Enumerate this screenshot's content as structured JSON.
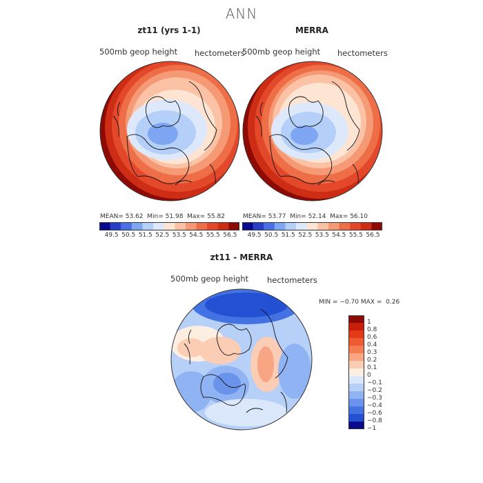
{
  "title": "ANN",
  "levels": [
    49.5,
    50.5,
    51.5,
    52.5,
    53.5,
    54.5,
    55.5,
    56.5
  ],
  "scale_colors": [
    "#0a0a8c",
    "#2a3fc8",
    "#4a6fe6",
    "#7ea6f2",
    "#b4cff8",
    "#dde9fb",
    "#fde4d3",
    "#fbc2a6",
    "#f59a74",
    "#ee6f47",
    "#e4482a",
    "#cc2d14",
    "#8e0a04"
  ],
  "diff_levels": [
    "1",
    "0.8",
    "0.6",
    "0.4",
    "0.3",
    "0.2",
    "0.1",
    "0",
    "−0.1",
    "−0.2",
    "−0.3",
    "−0.4",
    "−0.6",
    "−0.8",
    "−1"
  ],
  "diff_colors": [
    "#8e0a04",
    "#c81e0a",
    "#e43a1a",
    "#ef5a30",
    "#f47d52",
    "#f8a584",
    "#fbcdb5",
    "#fdeee2",
    "#dbe8fb",
    "#b7d0f8",
    "#90b4f3",
    "#6a94ec",
    "#4372e2",
    "#2450d4",
    "#0a0a8c"
  ],
  "panels": [
    {
      "title": "zt11 (yrs 1-1)",
      "field": "500mb geop height",
      "units": "hectometers",
      "mean_label": "MEAN=",
      "mean": "53.62",
      "min_label": "Min=",
      "min": "51.98",
      "max_label": "Max=",
      "max": "55.82"
    },
    {
      "title": "MERRA",
      "field": "500mb geop height",
      "units": "hectometers",
      "mean_label": "MEAN=",
      "mean": "53.77",
      "min_label": "Min=",
      "min": "52.14",
      "max_label": "Max=",
      "max": "56.10"
    }
  ],
  "diff_panel": {
    "title": "zt11 - MERRA",
    "field": "500mb geop height",
    "units": "hectometers",
    "min_label": "MIN =",
    "min": "−0.70",
    "max_label": "MAX =",
    "max": "0.26"
  },
  "chart_data": [
    {
      "type": "heatmap",
      "title": "zt11 (yrs 1-1)",
      "subtitle": "500mb geop height",
      "units": "hectometers",
      "mean": 53.62,
      "min": 51.98,
      "max": 55.82,
      "levels": [
        49.5,
        50.5,
        51.5,
        52.5,
        53.5,
        54.5,
        55.5,
        56.5
      ]
    },
    {
      "type": "heatmap",
      "title": "MERRA",
      "subtitle": "500mb geop height",
      "units": "hectometers",
      "mean": 53.77,
      "min": 52.14,
      "max": 56.1,
      "levels": [
        49.5,
        50.5,
        51.5,
        52.5,
        53.5,
        54.5,
        55.5,
        56.5
      ]
    },
    {
      "type": "heatmap",
      "title": "zt11 - MERRA",
      "subtitle": "500mb geop height",
      "units": "hectometers",
      "min": -0.7,
      "max": 0.26,
      "levels": [
        1,
        0.8,
        0.6,
        0.4,
        0.3,
        0.2,
        0.1,
        0,
        -0.1,
        -0.2,
        -0.3,
        -0.4,
        -0.6,
        -0.8,
        -1
      ]
    }
  ]
}
